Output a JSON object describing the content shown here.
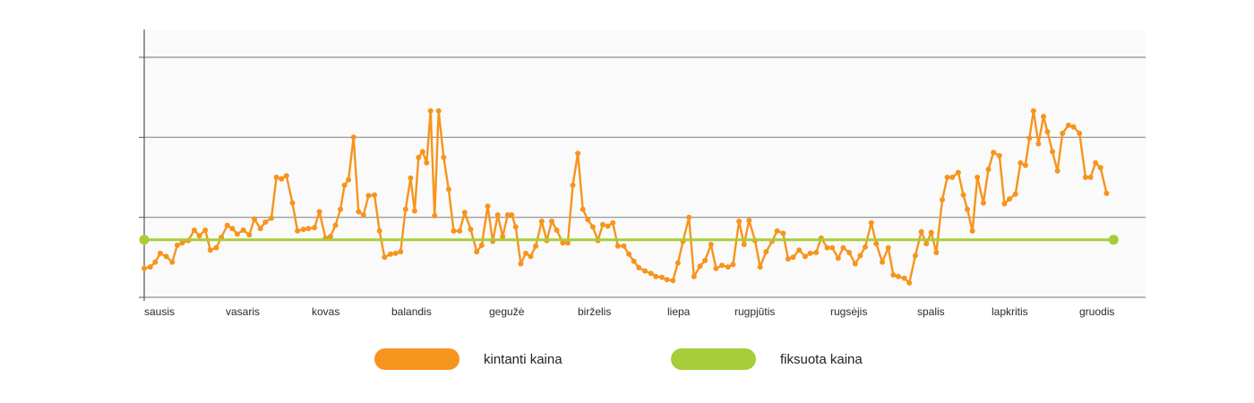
{
  "chart_data": {
    "type": "line",
    "x_categories": [
      "sausis",
      "vasaris",
      "kovas",
      "balandis",
      "gegužė",
      "birželis",
      "liepa",
      "rugpjūtis",
      "rugsėjis",
      "spalis",
      "lapkritis",
      "gruodis"
    ],
    "ylim": [
      0,
      300
    ],
    "grid_lines": [
      100,
      200,
      300
    ],
    "grid": true,
    "legend_position": "bottom-center",
    "colors": {
      "variable": "#f7941d",
      "fixed": "#a6ce39",
      "grid": "#8c8c8c",
      "plot_bg": "#fafafa"
    },
    "series": [
      {
        "name": "kintanti kaina",
        "values": [
          36,
          38,
          44,
          55,
          51,
          44,
          65,
          68,
          71,
          84,
          77,
          84,
          59,
          62,
          75,
          90,
          86,
          79,
          84,
          78,
          98,
          86,
          94,
          99,
          150,
          148,
          152,
          118,
          83,
          85,
          86,
          87,
          107,
          74,
          76,
          90,
          110,
          140,
          147,
          200,
          107,
          103,
          127,
          128,
          83,
          50,
          54,
          55,
          57,
          110,
          149,
          108,
          175,
          182,
          168,
          233,
          102,
          233,
          175,
          135,
          83,
          83,
          106,
          85,
          57,
          65,
          114,
          70,
          103,
          76,
          103,
          103,
          88,
          42,
          55,
          51,
          64,
          95,
          71,
          95,
          84,
          68,
          68,
          140,
          180,
          110,
          97,
          88,
          71,
          91,
          89,
          93,
          64,
          64,
          54,
          45,
          37,
          33,
          30,
          26,
          25,
          22,
          21,
          43,
          70,
          100,
          26,
          39,
          46,
          66,
          36,
          40,
          38,
          41,
          95,
          66,
          96,
          71,
          38,
          57,
          70,
          83,
          80,
          48,
          50,
          59,
          51,
          55,
          56,
          74,
          62,
          62,
          49,
          62,
          56,
          42,
          52,
          63,
          93,
          67,
          44,
          62,
          28,
          26,
          24,
          18,
          52,
          82,
          67,
          81,
          56,
          122,
          150,
          150,
          156,
          128,
          110,
          83,
          150,
          118,
          160,
          181,
          177,
          117,
          123,
          129,
          168,
          165,
          199,
          233,
          192,
          226,
          207,
          182,
          158,
          205,
          215,
          213,
          205,
          150,
          150,
          168,
          162,
          130
        ],
        "x": [
          0.0,
          0.006,
          0.011,
          0.016,
          0.022,
          0.028,
          0.033,
          0.038,
          0.044,
          0.05,
          0.055,
          0.061,
          0.066,
          0.072,
          0.077,
          0.083,
          0.088,
          0.093,
          0.099,
          0.105,
          0.11,
          0.116,
          0.121,
          0.127,
          0.132,
          0.137,
          0.142,
          0.148,
          0.153,
          0.159,
          0.164,
          0.17,
          0.175,
          0.181,
          0.186,
          0.191,
          0.196,
          0.2,
          0.204,
          0.209,
          0.214,
          0.219,
          0.224,
          0.23,
          0.235,
          0.24,
          0.246,
          0.251,
          0.256,
          0.261,
          0.266,
          0.27,
          0.274,
          0.278,
          0.282,
          0.286,
          0.29,
          0.294,
          0.299,
          0.304,
          0.309,
          0.315,
          0.32,
          0.326,
          0.332,
          0.337,
          0.343,
          0.348,
          0.353,
          0.358,
          0.363,
          0.367,
          0.371,
          0.376,
          0.381,
          0.386,
          0.391,
          0.397,
          0.402,
          0.407,
          0.412,
          0.418,
          0.423,
          0.428,
          0.433,
          0.438,
          0.443,
          0.448,
          0.453,
          0.458,
          0.463,
          0.468,
          0.473,
          0.479,
          0.484,
          0.489,
          0.494,
          0.5,
          0.506,
          0.511,
          0.517,
          0.522,
          0.528,
          0.533,
          0.538,
          0.544,
          0.549,
          0.555,
          0.56,
          0.566,
          0.571,
          0.577,
          0.583,
          0.588,
          0.594,
          0.599,
          0.604,
          0.61,
          0.615,
          0.621,
          0.627,
          0.632,
          0.638,
          0.643,
          0.648,
          0.654,
          0.66,
          0.665,
          0.671,
          0.676,
          0.682,
          0.687,
          0.693,
          0.698,
          0.704,
          0.71,
          0.715,
          0.72,
          0.726,
          0.731,
          0.737,
          0.743,
          0.748,
          0.753,
          0.759,
          0.764,
          0.77,
          0.776,
          0.781,
          0.786,
          0.791,
          0.797,
          0.802,
          0.807,
          0.813,
          0.818,
          0.822,
          0.827,
          0.832,
          0.838,
          0.843,
          0.848,
          0.854,
          0.859,
          0.864,
          0.87,
          0.875,
          0.88,
          0.884,
          0.888,
          0.893,
          0.898,
          0.902,
          0.907,
          0.912,
          0.917,
          0.923,
          0.928,
          0.934,
          0.94,
          0.945,
          0.95,
          0.955,
          0.961
        ]
      },
      {
        "name": "fiksuota kaina",
        "values": [
          72,
          72
        ],
        "x": [
          0.0,
          0.968
        ]
      }
    ]
  },
  "legend": {
    "items": [
      {
        "label": "kintanti kaina",
        "color": "#f7941d"
      },
      {
        "label": "fiksuota kaina",
        "color": "#a6ce39"
      }
    ]
  }
}
